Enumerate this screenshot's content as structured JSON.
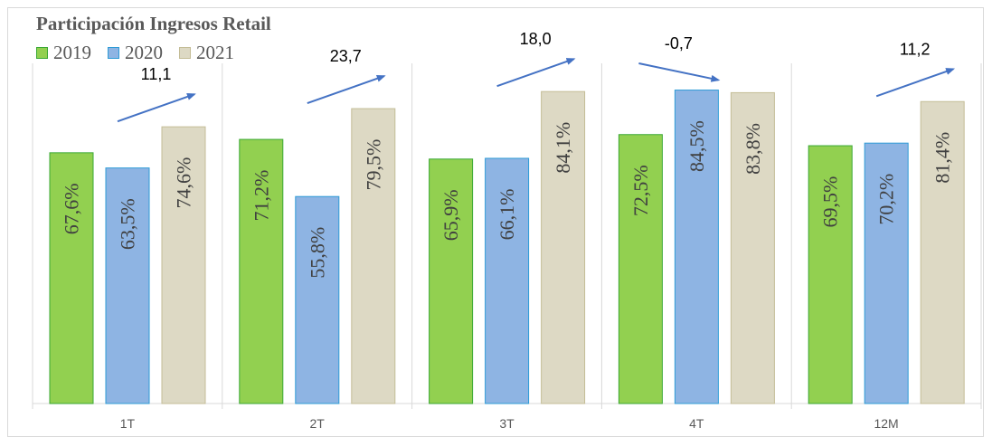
{
  "chart_data": {
    "type": "bar",
    "title": "Participación Ingresos Retail",
    "categories": [
      "1T",
      "2T",
      "3T",
      "4T",
      "12M"
    ],
    "series": [
      {
        "name": "2019",
        "values": [
          67.6,
          71.2,
          65.9,
          72.5,
          69.5
        ],
        "labels": [
          "67,6%",
          "71,2%",
          "65,9%",
          "72,5%",
          "69,5%"
        ],
        "color": "#92d050",
        "border": "#3aa834"
      },
      {
        "name": "2020",
        "values": [
          63.5,
          55.8,
          66.1,
          84.5,
          70.2
        ],
        "labels": [
          "63,5%",
          "55,8%",
          "66,1%",
          "84,5%",
          "70,2%"
        ],
        "color": "#8eb4e3",
        "border": "#2e9bd6"
      },
      {
        "name": "2021",
        "values": [
          74.6,
          79.5,
          84.1,
          83.8,
          81.4
        ],
        "labels": [
          "74,6%",
          "79,5%",
          "84,1%",
          "83,8%",
          "81,4%"
        ],
        "color": "#ddd9c4",
        "border": "#c4bd97"
      }
    ],
    "annotations": [
      "11,1",
      "23,7",
      "18,0",
      "-0,7",
      "11,2"
    ],
    "legend_position": "top-left",
    "grid": false,
    "ylim": [
      0,
      100
    ]
  }
}
